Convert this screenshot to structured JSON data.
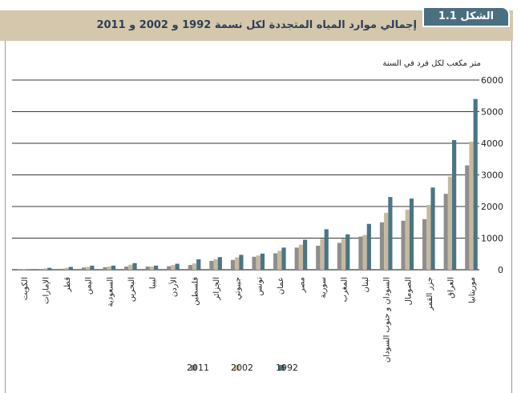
{
  "figure_label": "الشكل 1.1",
  "colors": {
    "header_band": "#d4c7ab",
    "badge": "#4a6f80",
    "title_text": "#2e3e55",
    "series_1992": "#4a7584",
    "series_2002": "#c8b99c",
    "series_2011": "#8e8e8e",
    "gridline": "#3a3a3a"
  },
  "chart_data": {
    "type": "bar",
    "title": "إجمالي موارد المياه المتجددة لكل نسمة 1992 و 2002 و 2011",
    "ylabel": "متر مكعب لكل فرد في السنة",
    "xlabel": "",
    "ylim": [
      0,
      6000
    ],
    "yticks": [
      0,
      1000,
      2000,
      3000,
      4000,
      5000,
      6000
    ],
    "y_axis_position": "right",
    "grid": true,
    "legend_position": "bottom",
    "categories": [
      "الكويت",
      "الإمارات",
      "قطر",
      "اليمن",
      "السعودية",
      "البحرين",
      "ليبيا",
      "الأردن",
      "فلسطين",
      "الجزائر",
      "جيبوتي",
      "تونس",
      "عمان",
      "مصر",
      "سورية",
      "المغرب",
      "لبنان",
      "السودان و جنوب السودان",
      "الصومال",
      "جزر القمر",
      "العراق",
      "موريتانيا"
    ],
    "series": [
      {
        "name": "2011",
        "values": [
          10,
          20,
          30,
          70,
          80,
          100,
          100,
          110,
          150,
          280,
          310,
          410,
          520,
          700,
          760,
          850,
          1050,
          1500,
          1550,
          1600,
          2400,
          3300
        ]
      },
      {
        "name": "2002",
        "values": [
          10,
          40,
          60,
          90,
          100,
          160,
          100,
          150,
          200,
          330,
          390,
          450,
          600,
          790,
          980,
          980,
          1100,
          1800,
          1900,
          2050,
          2950,
          4050
        ]
      },
      {
        "name": "1992",
        "values": [
          10,
          60,
          90,
          130,
          130,
          210,
          130,
          190,
          330,
          400,
          470,
          510,
          700,
          950,
          1280,
          1120,
          1450,
          2300,
          2250,
          2600,
          4100,
          5400
        ]
      }
    ]
  }
}
